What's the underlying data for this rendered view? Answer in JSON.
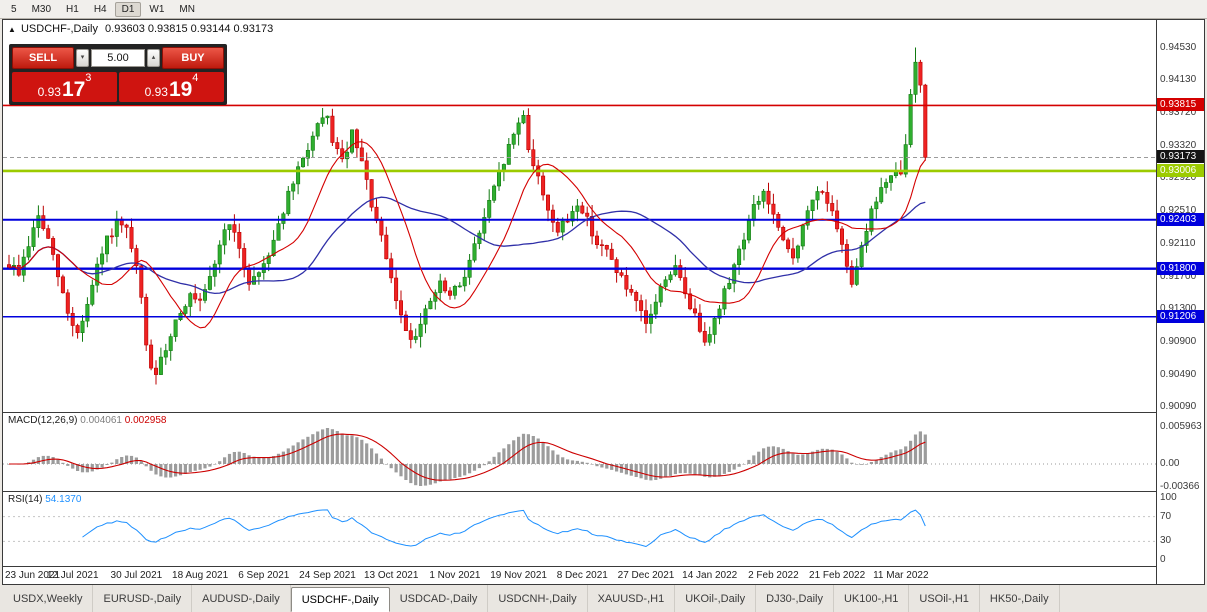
{
  "toolbar": {
    "timeframes": [
      {
        "label": "5",
        "active": false
      },
      {
        "label": "M30",
        "active": false
      },
      {
        "label": "H1",
        "active": false
      },
      {
        "label": "H4",
        "active": false
      },
      {
        "label": "D1",
        "active": true
      },
      {
        "label": "W1",
        "active": false
      },
      {
        "label": "MN",
        "active": false
      }
    ]
  },
  "chart": {
    "symbol_header": "USDCHF-,Daily",
    "ohlc": "0.93603 0.93815 0.93144 0.93173"
  },
  "trade_panel": {
    "sell_label": "SELL",
    "buy_label": "BUY",
    "volume": "5.00",
    "sell_price_prefix": "0.93",
    "sell_price_big": "17",
    "sell_price_sup": "3",
    "buy_price_prefix": "0.93",
    "buy_price_big": "19",
    "buy_price_sup": "4",
    "panel_red": "#cf1410"
  },
  "axis": {
    "ticks": [
      {
        "text": "0.94530",
        "price": 0.9453
      },
      {
        "text": "0.94130",
        "price": 0.9413
      },
      {
        "text": "0.93720",
        "price": 0.9372
      },
      {
        "text": "0.93320",
        "price": 0.9332
      },
      {
        "text": "0.92920",
        "price": 0.9292
      },
      {
        "text": "0.92510",
        "price": 0.9251
      },
      {
        "text": "0.92110",
        "price": 0.9211
      },
      {
        "text": "0.91700",
        "price": 0.917
      },
      {
        "text": "0.91300",
        "price": 0.913
      },
      {
        "text": "0.90900",
        "price": 0.909
      },
      {
        "text": "0.90490",
        "price": 0.9049
      },
      {
        "text": "0.90090",
        "price": 0.9009
      }
    ],
    "markers": [
      {
        "text": "0.93815",
        "price": 0.93815,
        "bg": "#d40000",
        "fg": "#ffffff"
      },
      {
        "text": "0.93173",
        "price": 0.93173,
        "bg": "#141414",
        "fg": "#ffffff"
      },
      {
        "text": "0.93006",
        "price": 0.93006,
        "bg": "#9ccb00",
        "fg": "#ffffff"
      },
      {
        "text": "0.92403",
        "price": 0.92403,
        "bg": "#0000dd",
        "fg": "#ffffff"
      },
      {
        "text": "0.91800",
        "price": 0.918,
        "bg": "#0000dd",
        "fg": "#ffffff"
      },
      {
        "text": "0.91206",
        "price": 0.91206,
        "bg": "#0000dd",
        "fg": "#ffffff"
      }
    ]
  },
  "macd": {
    "label": "MACD(12,26,9)",
    "value_main": "0.004061",
    "value_signal": "0.002958",
    "axis": [
      "0.005963",
      "0.00",
      "-0.00366"
    ]
  },
  "rsi": {
    "label": "RSI(14)",
    "value": "54.1370",
    "axis": [
      "100",
      "70",
      "30",
      "0"
    ]
  },
  "tabs": [
    {
      "label": "USDX,Weekly",
      "active": false
    },
    {
      "label": "EURUSD-,Daily",
      "active": false
    },
    {
      "label": "AUDUSD-,Daily",
      "active": false
    },
    {
      "label": "USDCHF-,Daily",
      "active": true
    },
    {
      "label": "USDCAD-,Daily",
      "active": false
    },
    {
      "label": "USDCNH-,Daily",
      "active": false
    },
    {
      "label": "XAUUSD-,H1",
      "active": false
    },
    {
      "label": "UKOil-,Daily",
      "active": false
    },
    {
      "label": "DJ30-,Daily",
      "active": false
    },
    {
      "label": "UK100-,H1",
      "active": false
    },
    {
      "label": "USOil-,H1",
      "active": false
    },
    {
      "label": "HK50-,Daily",
      "active": false
    }
  ],
  "chart_data": {
    "type": "candlestick",
    "symbol": "USDCHF",
    "timeframe": "Daily",
    "bar_count": 188,
    "price_min": 0.9003,
    "price_max": 0.9487,
    "last_close": 0.93173,
    "extreme_high": 0.9453,
    "extreme_low": 0.9037,
    "current_price": 0.93173,
    "ma_fast_period": 13,
    "ma_slow_period": 34,
    "macd_params": [
      12,
      26,
      9
    ],
    "rsi_period": 14,
    "seed": 9,
    "noise": 0.0013,
    "wick": 0.0014,
    "colors": {
      "up_fill": "#2fae2f",
      "up_stroke": "#117a11",
      "down_fill": "#ee2222",
      "down_stroke": "#bb0000",
      "ma_fast": "#d40000",
      "ma_slow": "#3030a8",
      "macd_hist": "#9c9c9c",
      "macd_signal": "#cc0000",
      "rsi_line": "#1e90ff",
      "current_line": "#9b9b9b"
    },
    "levels": [
      {
        "price": 0.93815,
        "color": "#d40000",
        "width": 1.6
      },
      {
        "price": 0.93006,
        "color": "#9ccb00",
        "width": 2.6
      },
      {
        "price": 0.92403,
        "color": "#0000dd",
        "width": 2
      },
      {
        "price": 0.918,
        "color": "#0000dd",
        "width": 2.4
      },
      {
        "price": 0.91206,
        "color": "#0000dd",
        "width": 1.6
      }
    ],
    "x_ticks": [
      {
        "text": "23 Jun 2021",
        "bar": 0
      },
      {
        "text": "12 Jul 2021",
        "bar": 13
      },
      {
        "text": "30 Jul 2021",
        "bar": 26
      },
      {
        "text": "18 Aug 2021",
        "bar": 39
      },
      {
        "text": "6 Sep 2021",
        "bar": 52
      },
      {
        "text": "24 Sep 2021",
        "bar": 65
      },
      {
        "text": "13 Oct 2021",
        "bar": 78
      },
      {
        "text": "1 Nov 2021",
        "bar": 91
      },
      {
        "text": "19 Nov 2021",
        "bar": 104
      },
      {
        "text": "8 Dec 2021",
        "bar": 117
      },
      {
        "text": "27 Dec 2021",
        "bar": 130
      },
      {
        "text": "14 Jan 2022",
        "bar": 143
      },
      {
        "text": "2 Feb 2022",
        "bar": 156
      },
      {
        "text": "21 Feb 2022",
        "bar": 169
      },
      {
        "text": "11 Mar 2022",
        "bar": 182
      }
    ],
    "anchors": [
      [
        0,
        0.9185
      ],
      [
        2,
        0.9175
      ],
      [
        4,
        0.921
      ],
      [
        6,
        0.9245
      ],
      [
        8,
        0.9215
      ],
      [
        10,
        0.917
      ],
      [
        12,
        0.9125
      ],
      [
        14,
        0.91
      ],
      [
        16,
        0.9135
      ],
      [
        18,
        0.918
      ],
      [
        20,
        0.9215
      ],
      [
        22,
        0.9235
      ],
      [
        24,
        0.9225
      ],
      [
        26,
        0.918
      ],
      [
        27,
        0.914
      ],
      [
        28,
        0.9085
      ],
      [
        29,
        0.906
      ],
      [
        30,
        0.9045
      ],
      [
        31,
        0.9065
      ],
      [
        33,
        0.91
      ],
      [
        35,
        0.913
      ],
      [
        37,
        0.9145
      ],
      [
        39,
        0.9135
      ],
      [
        41,
        0.9165
      ],
      [
        43,
        0.921
      ],
      [
        45,
        0.924
      ],
      [
        47,
        0.92
      ],
      [
        49,
        0.9165
      ],
      [
        51,
        0.9175
      ],
      [
        53,
        0.92
      ],
      [
        55,
        0.9235
      ],
      [
        57,
        0.927
      ],
      [
        59,
        0.93
      ],
      [
        61,
        0.933
      ],
      [
        63,
        0.9355
      ],
      [
        65,
        0.9365
      ],
      [
        66,
        0.934
      ],
      [
        68,
        0.931
      ],
      [
        70,
        0.9345
      ],
      [
        72,
        0.931
      ],
      [
        74,
        0.926
      ],
      [
        76,
        0.9215
      ],
      [
        78,
        0.9165
      ],
      [
        80,
        0.912
      ],
      [
        82,
        0.9095
      ],
      [
        84,
        0.911
      ],
      [
        86,
        0.914
      ],
      [
        88,
        0.916
      ],
      [
        90,
        0.9145
      ],
      [
        92,
        0.916
      ],
      [
        94,
        0.919
      ],
      [
        96,
        0.9225
      ],
      [
        98,
        0.926
      ],
      [
        100,
        0.9295
      ],
      [
        102,
        0.933
      ],
      [
        104,
        0.936
      ],
      [
        105,
        0.9372
      ],
      [
        106,
        0.933
      ],
      [
        108,
        0.929
      ],
      [
        110,
        0.9255
      ],
      [
        112,
        0.9225
      ],
      [
        114,
        0.924
      ],
      [
        116,
        0.9262
      ],
      [
        118,
        0.924
      ],
      [
        120,
        0.9212
      ],
      [
        122,
        0.92
      ],
      [
        124,
        0.918
      ],
      [
        126,
        0.9155
      ],
      [
        128,
        0.9135
      ],
      [
        130,
        0.911
      ],
      [
        132,
        0.914
      ],
      [
        134,
        0.917
      ],
      [
        136,
        0.918
      ],
      [
        138,
        0.915
      ],
      [
        140,
        0.912
      ],
      [
        142,
        0.9095
      ],
      [
        144,
        0.9115
      ],
      [
        146,
        0.915
      ],
      [
        148,
        0.9185
      ],
      [
        150,
        0.922
      ],
      [
        152,
        0.9255
      ],
      [
        154,
        0.9275
      ],
      [
        156,
        0.9245
      ],
      [
        158,
        0.921
      ],
      [
        160,
        0.9195
      ],
      [
        162,
        0.923
      ],
      [
        164,
        0.9265
      ],
      [
        166,
        0.928
      ],
      [
        168,
        0.9245
      ],
      [
        170,
        0.9205
      ],
      [
        172,
        0.9165
      ],
      [
        174,
        0.921
      ],
      [
        176,
        0.925
      ],
      [
        178,
        0.928
      ],
      [
        180,
        0.929
      ],
      [
        182,
        0.93
      ],
      [
        183,
        0.933
      ],
      [
        184,
        0.9395
      ],
      [
        185,
        0.944
      ],
      [
        186,
        0.941
      ],
      [
        187,
        0.93173
      ]
    ]
  }
}
